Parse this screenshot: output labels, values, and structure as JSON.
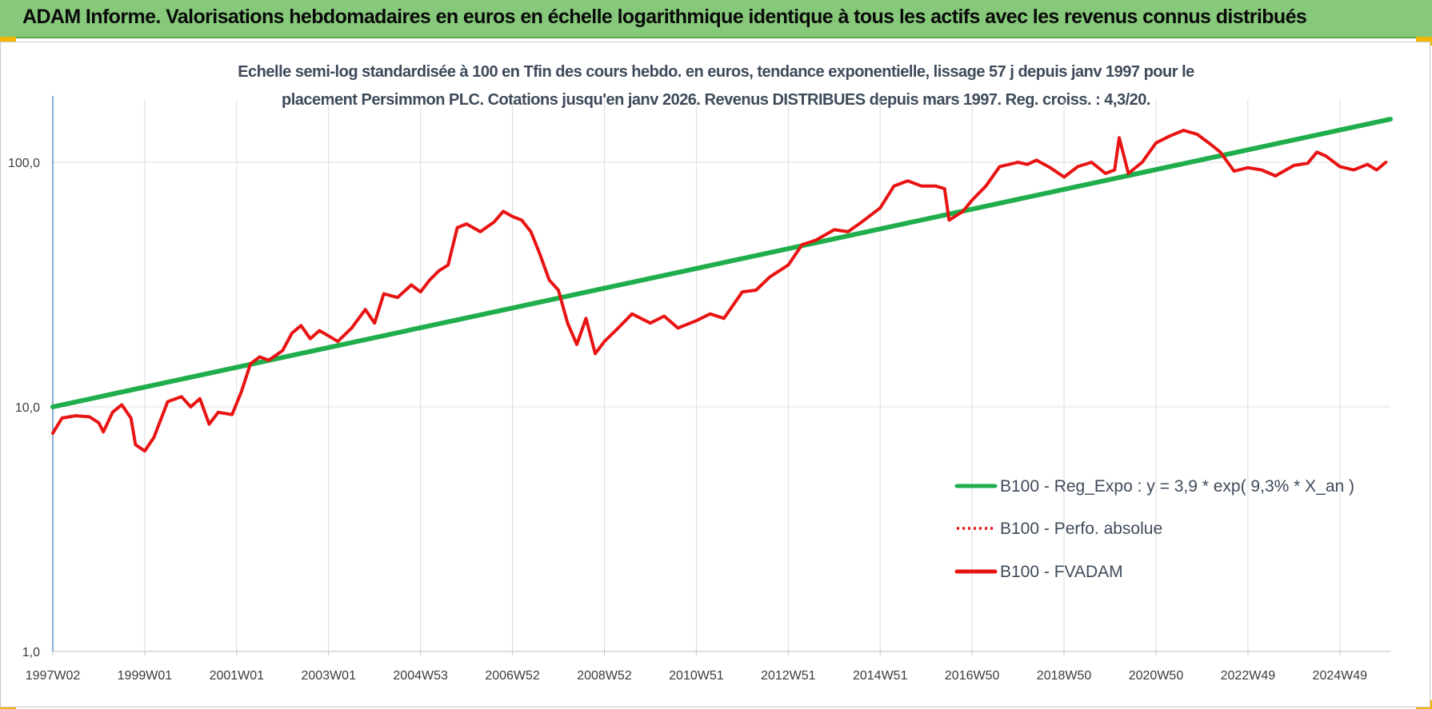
{
  "header": {
    "title": "ADAM Informe. Valorisations hebdomadaires en euros en échelle logarithmique identique à tous les actifs avec les revenus connus distribués"
  },
  "colors": {
    "header_bg": "#86c97a",
    "corner_accent": "#f2b705",
    "regression_line": "#1fae4b",
    "fvadam_line": "#e81313",
    "perfo_line": "#e81313"
  },
  "chart_data": {
    "type": "line",
    "title_line1": "Echelle semi-log standardisée à 100 en Tfin des cours hebdo. en euros, tendance exponentielle, lissage 57 j depuis janv 1997 pour le",
    "title_line2": "placement Persimmon PLC. Cotations jusqu'en janv 2026. Revenus DISTRIBUES depuis mars 1997. Reg.  croiss. : 4,3/20.",
    "y_scale": "log",
    "ylim": [
      1,
      180
    ],
    "xlim": [
      1997.0,
      2026.1
    ],
    "y_ticks": [
      {
        "value": 100,
        "label": "100,0"
      },
      {
        "value": 10,
        "label": "10,0"
      },
      {
        "value": 1,
        "label": "1,0"
      }
    ],
    "x_ticks": [
      {
        "value": 1997.0,
        "label": "1997W02"
      },
      {
        "value": 1999.0,
        "label": "1999W01"
      },
      {
        "value": 2001.0,
        "label": "2001W01"
      },
      {
        "value": 2003.0,
        "label": "2003W01"
      },
      {
        "value": 2005.0,
        "label": "2004W53"
      },
      {
        "value": 2007.0,
        "label": "2006W52"
      },
      {
        "value": 2009.0,
        "label": "2008W52"
      },
      {
        "value": 2011.0,
        "label": "2010W51"
      },
      {
        "value": 2013.0,
        "label": "2012W51"
      },
      {
        "value": 2015.0,
        "label": "2014W51"
      },
      {
        "value": 2017.0,
        "label": "2016W50"
      },
      {
        "value": 2019.0,
        "label": "2018W50"
      },
      {
        "value": 2021.0,
        "label": "2020W50"
      },
      {
        "value": 2023.0,
        "label": "2022W49"
      },
      {
        "value": 2025.0,
        "label": "2024W49"
      }
    ],
    "grid": "vertical and horizontal",
    "legend_placement": "bottom-right inside plot",
    "series": [
      {
        "name": "B100 - Reg_Expo : y = 3,9 * exp( 9,3% *  X_an )",
        "style": "solid",
        "color": "#1fae4b",
        "x": [
          1997.0,
          2026.1
        ],
        "values": [
          10.0,
          150.0
        ]
      },
      {
        "name": "B100 - Perfo. absolue",
        "style": "dotted",
        "color": "#e81313",
        "x": [],
        "values": []
      },
      {
        "name": "B100 - FVADAM",
        "style": "solid",
        "color": "#e81313",
        "x": [
          1997.0,
          1997.2,
          1997.5,
          1997.8,
          1998.0,
          1998.1,
          1998.3,
          1998.5,
          1998.7,
          1998.8,
          1999.0,
          1999.2,
          1999.5,
          1999.8,
          2000.0,
          2000.2,
          2000.4,
          2000.6,
          2000.9,
          2001.1,
          2001.3,
          2001.5,
          2001.7,
          2002.0,
          2002.2,
          2002.4,
          2002.6,
          2002.8,
          2003.0,
          2003.2,
          2003.5,
          2003.8,
          2004.0,
          2004.2,
          2004.5,
          2004.8,
          2005.0,
          2005.2,
          2005.4,
          2005.6,
          2005.8,
          2006.0,
          2006.3,
          2006.6,
          2006.8,
          2007.0,
          2007.2,
          2007.4,
          2007.6,
          2007.8,
          2008.0,
          2008.2,
          2008.4,
          2008.6,
          2008.8,
          2009.0,
          2009.3,
          2009.6,
          2010.0,
          2010.3,
          2010.6,
          2011.0,
          2011.3,
          2011.6,
          2012.0,
          2012.3,
          2012.6,
          2013.0,
          2013.3,
          2013.6,
          2014.0,
          2014.3,
          2014.6,
          2015.0,
          2015.3,
          2015.6,
          2015.9,
          2016.2,
          2016.4,
          2016.5,
          2016.8,
          2017.0,
          2017.3,
          2017.6,
          2018.0,
          2018.2,
          2018.4,
          2018.7,
          2019.0,
          2019.3,
          2019.6,
          2019.9,
          2020.1,
          2020.2,
          2020.4,
          2020.7,
          2021.0,
          2021.3,
          2021.6,
          2021.9,
          2022.2,
          2022.4,
          2022.7,
          2023.0,
          2023.3,
          2023.6,
          2024.0,
          2024.3,
          2024.5,
          2024.7,
          2025.0,
          2025.3,
          2025.6,
          2025.8,
          2026.0
        ],
        "values": [
          7.8,
          9.0,
          9.2,
          9.1,
          8.6,
          7.9,
          9.5,
          10.2,
          9.0,
          7.0,
          6.6,
          7.5,
          10.5,
          11.0,
          10.0,
          10.8,
          8.5,
          9.5,
          9.3,
          11.5,
          15.0,
          16.0,
          15.5,
          17.0,
          20.0,
          21.5,
          19.0,
          20.5,
          19.5,
          18.5,
          21.0,
          25.0,
          22.0,
          29.0,
          28.0,
          31.5,
          29.5,
          33.0,
          36.0,
          38.0,
          54.0,
          56.0,
          52.0,
          57.0,
          63.0,
          60.0,
          58.0,
          52.0,
          42.0,
          33.0,
          30.0,
          22.0,
          18.0,
          23.0,
          16.5,
          18.5,
          21.0,
          24.0,
          22.0,
          23.5,
          21.0,
          22.5,
          24.0,
          23.0,
          29.5,
          30.0,
          34.0,
          38.0,
          46.0,
          48.0,
          53.0,
          52.0,
          57.0,
          65.0,
          80.0,
          84.0,
          80.0,
          80.0,
          78.0,
          58.0,
          63.0,
          70.0,
          80.0,
          96.0,
          100.0,
          98.0,
          102.0,
          95.0,
          87.0,
          96.0,
          100.0,
          90.0,
          93.0,
          126.0,
          90.0,
          100.0,
          120.0,
          128.0,
          135.0,
          130.0,
          118.0,
          110.0,
          92.0,
          95.0,
          93.0,
          88.0,
          97.0,
          99.0,
          110.0,
          106.0,
          96.0,
          93.0,
          98.0,
          93.0,
          100.0
        ]
      }
    ]
  }
}
